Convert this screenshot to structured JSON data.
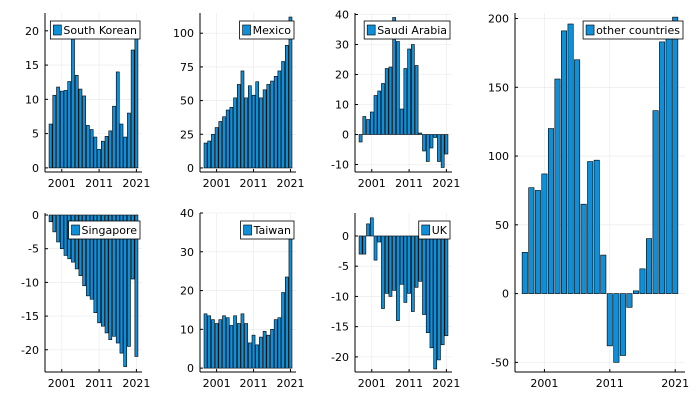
{
  "chart_data": [
    {
      "type": "bar",
      "legend": "South Korean",
      "legend_position": "top-right",
      "grid": true,
      "color": "#0f8fd8",
      "x": [
        1998,
        1999,
        2000,
        2001,
        2002,
        2003,
        2004,
        2005,
        2006,
        2007,
        2008,
        2009,
        2010,
        2011,
        2012,
        2013,
        2014,
        2015,
        2016,
        2017,
        2018,
        2019,
        2020,
        2021
      ],
      "values": [
        6.4,
        10.6,
        11.8,
        11.2,
        11.3,
        12.6,
        19.0,
        13.5,
        11.5,
        10.5,
        6.2,
        5.6,
        4.5,
        2.7,
        3.9,
        4.6,
        5.4,
        9.0,
        14.0,
        6.4,
        4.5,
        8.0,
        17.2,
        20.3
      ],
      "xlim": [
        1996.5,
        2022.5
      ],
      "ylim": [
        -0.6,
        22.6
      ],
      "xticks": [
        2001,
        2011,
        2021
      ],
      "yticks": [
        0,
        5,
        10,
        15,
        20
      ]
    },
    {
      "type": "bar",
      "legend": "Mexico",
      "legend_position": "top-right",
      "grid": true,
      "color": "#0f8fd8",
      "x": [
        1998,
        1999,
        2000,
        2001,
        2002,
        2003,
        2004,
        2005,
        2006,
        2007,
        2008,
        2009,
        2010,
        2011,
        2012,
        2013,
        2014,
        2015,
        2016,
        2017,
        2018,
        2019,
        2020,
        2021
      ],
      "values": [
        18.5,
        20.0,
        25.0,
        30.0,
        34.5,
        38.0,
        43.0,
        45.0,
        52.0,
        62.0,
        72.0,
        52.0,
        61.0,
        54.0,
        64.0,
        52.0,
        58.0,
        62.0,
        64.5,
        68.0,
        72.0,
        79.0,
        91.0,
        112.0
      ],
      "xlim": [
        1996.5,
        2022.5
      ],
      "ylim": [
        -3,
        115
      ],
      "xticks": [
        2001,
        2011,
        2021
      ],
      "yticks": [
        0,
        25,
        50,
        75,
        100
      ]
    },
    {
      "type": "bar",
      "legend": "Saudi Arabia",
      "legend_position": "top-right",
      "grid": true,
      "color": "#0f8fd8",
      "x": [
        1998,
        1999,
        2000,
        2001,
        2002,
        2003,
        2004,
        2005,
        2006,
        2007,
        2008,
        2009,
        2010,
        2011,
        2012,
        2013,
        2014,
        2015,
        2016,
        2017,
        2018,
        2019,
        2020,
        2021
      ],
      "values": [
        -2.5,
        6.0,
        5.0,
        7.5,
        13.0,
        14.5,
        17.0,
        22.0,
        22.5,
        39.0,
        31.0,
        8.5,
        22.0,
        28.5,
        30.0,
        23.0,
        0.5,
        -5.5,
        -9.0,
        -4.5,
        -1.0,
        -9.0,
        -11.0,
        -6.5
      ],
      "xlim": [
        1996.5,
        2022.5
      ],
      "ylim": [
        -12.5,
        40.5
      ],
      "xticks": [
        2001,
        2011,
        2021
      ],
      "yticks": [
        -10,
        0,
        10,
        20,
        30,
        40
      ]
    },
    {
      "type": "bar",
      "legend": "other countries",
      "legend_position": "top-right",
      "grid": true,
      "color": "#0f8fd8",
      "x": [
        1998,
        1999,
        2000,
        2001,
        2002,
        2003,
        2004,
        2005,
        2006,
        2007,
        2008,
        2009,
        2010,
        2011,
        2012,
        2013,
        2014,
        2015,
        2016,
        2017,
        2018,
        2019,
        2020,
        2021
      ],
      "values": [
        30.0,
        77.0,
        75.0,
        87.0,
        120.0,
        156.0,
        191.0,
        196.0,
        170.0,
        65.0,
        96.0,
        97.0,
        28.0,
        -38.0,
        -50.0,
        -45.0,
        -10.0,
        2.0,
        18.0,
        40.0,
        133.0,
        183.0,
        196.0,
        201.0
      ],
      "xlim": [
        1996.5,
        2022.5
      ],
      "ylim": [
        -57,
        204
      ],
      "xticks": [
        2001,
        2011,
        2021
      ],
      "yticks": [
        -50,
        0,
        50,
        100,
        150,
        200
      ]
    },
    {
      "type": "bar",
      "legend": "Singapore",
      "legend_position": "top-right",
      "grid": true,
      "color": "#0f8fd8",
      "x": [
        1998,
        1999,
        2000,
        2001,
        2002,
        2003,
        2004,
        2005,
        2006,
        2007,
        2008,
        2009,
        2010,
        2011,
        2012,
        2013,
        2014,
        2015,
        2016,
        2017,
        2018,
        2019,
        2020,
        2021
      ],
      "values": [
        -1.0,
        -2.5,
        -4.0,
        -5.0,
        -6.0,
        -6.5,
        -7.0,
        -8.0,
        -9.0,
        -10.5,
        -12.0,
        -12.5,
        -14.5,
        -16.0,
        -16.5,
        -17.5,
        -18.5,
        -18.0,
        -19.0,
        -20.5,
        -22.5,
        -19.5,
        -9.5,
        -21.0
      ],
      "xlim": [
        1996.5,
        2022.5
      ],
      "ylim": [
        -23.3,
        0.3
      ],
      "xticks": [
        2001,
        2011,
        2021
      ],
      "yticks": [
        -20,
        -15,
        -10,
        -5,
        0
      ]
    },
    {
      "type": "bar",
      "legend": "Taiwan",
      "legend_position": "top-right",
      "grid": true,
      "color": "#0f8fd8",
      "x": [
        1998,
        1999,
        2000,
        2001,
        2002,
        2003,
        2004,
        2005,
        2006,
        2007,
        2008,
        2009,
        2010,
        2011,
        2012,
        2013,
        2014,
        2015,
        2016,
        2017,
        2018,
        2019,
        2020,
        2021
      ],
      "values": [
        14.0,
        13.5,
        12.5,
        11.5,
        12.5,
        13.5,
        13.0,
        11.0,
        13.5,
        11.5,
        14.0,
        11.5,
        6.5,
        8.5,
        6.0,
        8.0,
        9.5,
        8.5,
        10.0,
        12.5,
        13.0,
        19.5,
        23.5,
        33.5
      ],
      "xlim": [
        1996.5,
        2022.5
      ],
      "ylim": [
        -1,
        40
      ],
      "xticks": [
        2001,
        2011,
        2021
      ],
      "yticks": [
        0,
        10,
        20,
        30,
        40
      ]
    },
    {
      "type": "bar",
      "legend": "UK",
      "legend_position": "top-right",
      "grid": true,
      "color": "#0f8fd8",
      "x": [
        1998,
        1999,
        2000,
        2001,
        2002,
        2003,
        2004,
        2005,
        2006,
        2007,
        2008,
        2009,
        2010,
        2011,
        2012,
        2013,
        2014,
        2015,
        2016,
        2017,
        2018,
        2019,
        2020,
        2021
      ],
      "values": [
        -3.0,
        -3.0,
        2.0,
        3.0,
        -4.0,
        -1.0,
        -12.0,
        -9.5,
        -10.0,
        -9.0,
        -14.0,
        -8.0,
        -11.0,
        -9.5,
        -12.5,
        -8.5,
        -7.5,
        -13.0,
        -16.0,
        -18.5,
        -22.0,
        -20.5,
        -18.0,
        -16.5
      ],
      "xlim": [
        1996.5,
        2022.5
      ],
      "ylim": [
        -22.5,
        3.8
      ],
      "xticks": [
        2001,
        2011,
        2021
      ],
      "yticks": [
        -20,
        -15,
        -10,
        -5,
        0
      ]
    }
  ]
}
